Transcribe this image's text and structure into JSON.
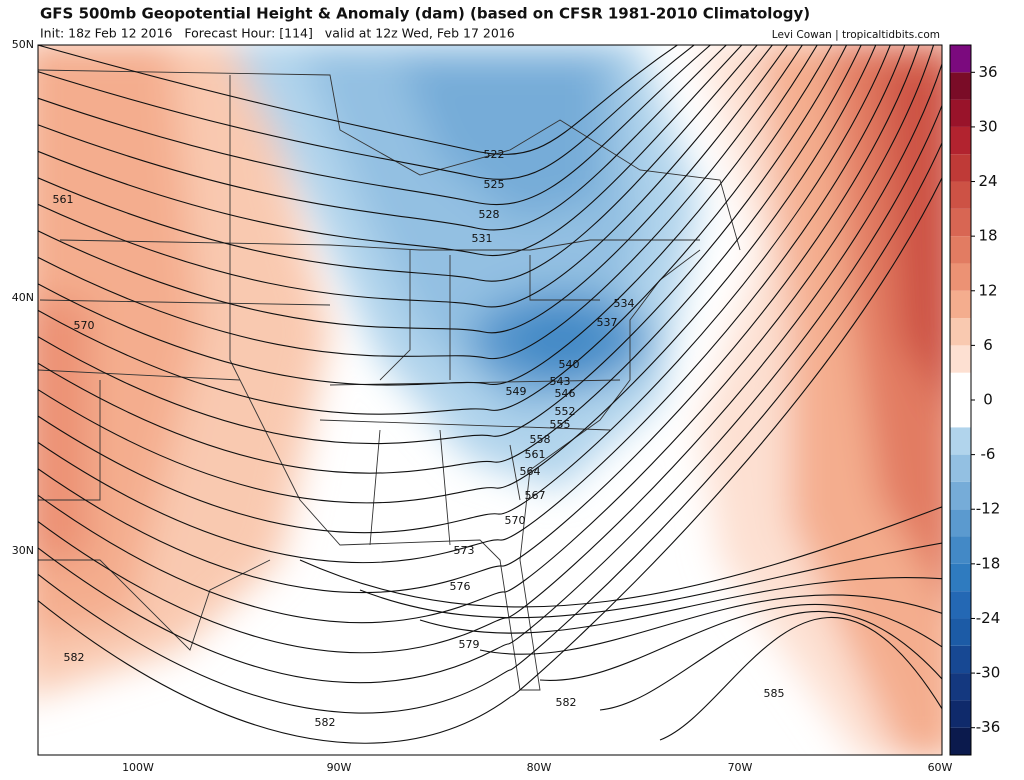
{
  "header": {
    "title": "GFS 500mb Geopotential Height & Anomaly (dam) (based on CFSR 1981-2010 Climatology)",
    "subtitle": "Init: 18z Feb 12 2016   Forecast Hour: [114]   valid at 12z Wed, Feb 17 2016",
    "credit": "Levi Cowan | tropicaltidbits.com"
  },
  "map": {
    "lat_labels": [
      "50N",
      "40N",
      "30N"
    ],
    "lon_labels": [
      "100W",
      "90W",
      "80W",
      "70W",
      "60W"
    ],
    "contour_labels": [
      522,
      525,
      528,
      531,
      534,
      537,
      540,
      543,
      546,
      549,
      552,
      555,
      558,
      561,
      564,
      567,
      570,
      573,
      576,
      579,
      582,
      585,
      582,
      561,
      570,
      582
    ]
  },
  "colorbar": {
    "lim": [
      -39,
      39
    ],
    "ticks": [
      36,
      30,
      24,
      18,
      12,
      6,
      0,
      -6,
      -12,
      -18,
      -24,
      -30,
      -36
    ],
    "colors": [
      "#0b1a4d",
      "#0f2a6b",
      "#14387f",
      "#174893",
      "#1c5ba6",
      "#2468b4",
      "#2f7bbf",
      "#4389c6",
      "#5b9acf",
      "#76acd8",
      "#93c0e2",
      "#b1d4ec",
      "#ffffff",
      "#ffffff",
      "#fde0d2",
      "#f9c9b0",
      "#f4ad8e",
      "#ec9274",
      "#e27c62",
      "#d86653",
      "#cd5245",
      "#bf3a37",
      "#b2232f",
      "#99132a",
      "#7a0c27",
      "#7b0a7e"
    ]
  }
}
